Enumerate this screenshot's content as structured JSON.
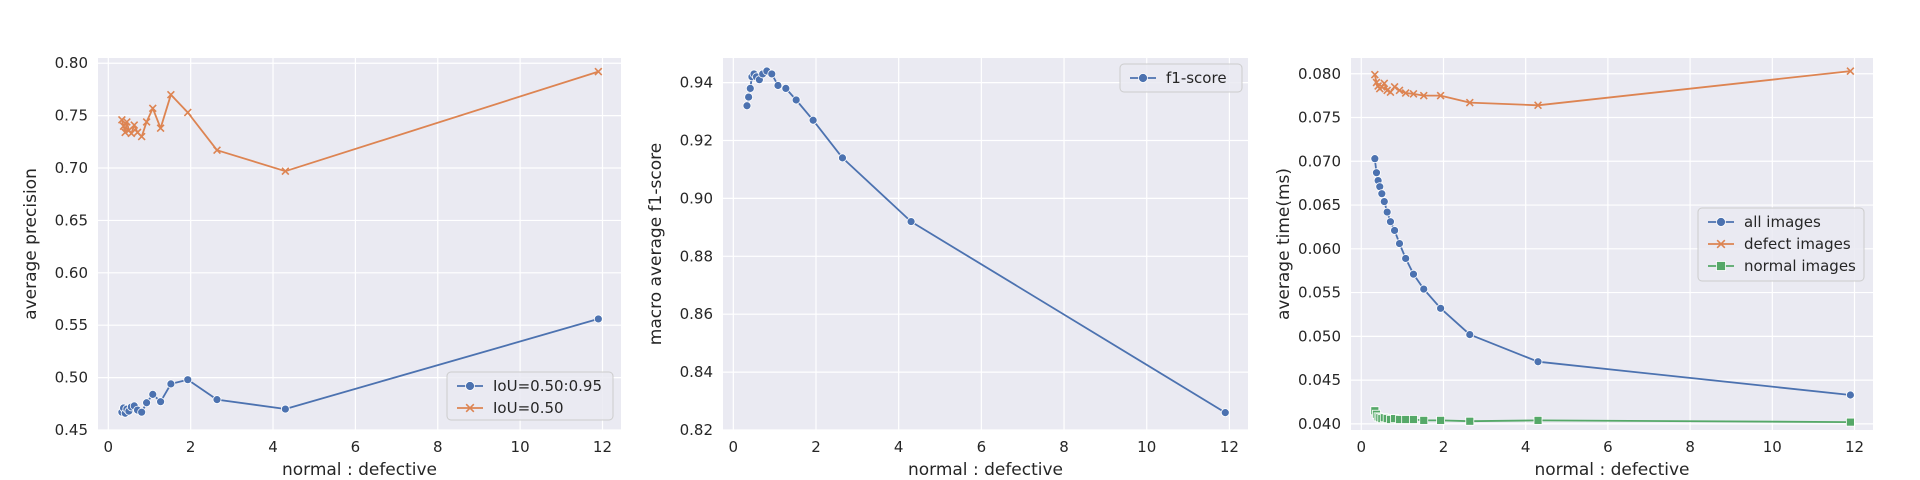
{
  "chart_data": [
    {
      "type": "line",
      "title": "",
      "xlabel": "normal : defective",
      "ylabel": "average precision",
      "xlim": [
        -0.25,
        12.45
      ],
      "ylim": [
        0.45,
        0.805
      ],
      "xticks": [
        0,
        2,
        4,
        6,
        8,
        10,
        12
      ],
      "yticks": [
        0.45,
        0.5,
        0.55,
        0.6,
        0.65,
        0.7,
        0.75,
        0.8
      ],
      "ytick_labels": [
        "0.45",
        "0.50",
        "0.55",
        "0.60",
        "0.65",
        "0.70",
        "0.75",
        "0.80"
      ],
      "grid": true,
      "legend_position": "lower-right",
      "series": [
        {
          "name": "IoU=0.50:0.95",
          "color": "#4c72b0",
          "marker": "circle",
          "x": [
            0.33,
            0.37,
            0.41,
            0.45,
            0.5,
            0.56,
            0.63,
            0.71,
            0.81,
            0.93,
            1.08,
            1.27,
            1.52,
            1.93,
            2.64,
            4.3,
            11.9
          ],
          "y": [
            0.467,
            0.471,
            0.466,
            0.47,
            0.468,
            0.472,
            0.473,
            0.469,
            0.467,
            0.476,
            0.484,
            0.477,
            0.494,
            0.498,
            0.479,
            0.47,
            0.556
          ]
        },
        {
          "name": "IoU=0.50",
          "color": "#dd8452",
          "marker": "x",
          "x": [
            0.33,
            0.37,
            0.41,
            0.45,
            0.5,
            0.56,
            0.63,
            0.71,
            0.81,
            0.93,
            1.08,
            1.27,
            1.52,
            1.93,
            2.64,
            4.3,
            11.9
          ],
          "y": [
            0.746,
            0.74,
            0.734,
            0.744,
            0.736,
            0.733,
            0.741,
            0.734,
            0.73,
            0.744,
            0.757,
            0.738,
            0.77,
            0.753,
            0.717,
            0.697,
            0.792
          ]
        }
      ]
    },
    {
      "type": "line",
      "title": "",
      "xlabel": "normal : defective",
      "ylabel": "macro average f1-score",
      "xlim": [
        -0.25,
        12.45
      ],
      "ylim": [
        0.82,
        0.9485
      ],
      "xticks": [
        0,
        2,
        4,
        6,
        8,
        10,
        12
      ],
      "yticks": [
        0.82,
        0.84,
        0.86,
        0.88,
        0.9,
        0.92,
        0.94
      ],
      "ytick_labels": [
        "0.82",
        "0.84",
        "0.86",
        "0.88",
        "0.90",
        "0.92",
        "0.94"
      ],
      "grid": true,
      "legend_position": "top-right",
      "series": [
        {
          "name": "f1-score",
          "color": "#4c72b0",
          "marker": "circle",
          "x": [
            0.33,
            0.37,
            0.41,
            0.45,
            0.5,
            0.56,
            0.63,
            0.71,
            0.81,
            0.93,
            1.08,
            1.27,
            1.52,
            1.93,
            2.64,
            4.3,
            11.9
          ],
          "y": [
            0.932,
            0.935,
            0.938,
            0.942,
            0.943,
            0.942,
            0.941,
            0.943,
            0.944,
            0.943,
            0.939,
            0.938,
            0.934,
            0.927,
            0.914,
            0.892,
            0.826
          ]
        }
      ]
    },
    {
      "type": "line",
      "title": "",
      "xlabel": "normal : defective",
      "ylabel": "average time(ms)",
      "xlim": [
        -0.25,
        12.45
      ],
      "ylim": [
        0.0393,
        0.0818
      ],
      "xticks": [
        0,
        2,
        4,
        6,
        8,
        10,
        12
      ],
      "yticks": [
        0.04,
        0.045,
        0.05,
        0.055,
        0.06,
        0.065,
        0.07,
        0.075,
        0.08
      ],
      "ytick_labels": [
        "0.040",
        "0.045",
        "0.050",
        "0.055",
        "0.060",
        "0.065",
        "0.070",
        "0.075",
        "0.080"
      ],
      "grid": true,
      "legend_position": "center-right",
      "series": [
        {
          "name": "all images",
          "color": "#4c72b0",
          "marker": "circle",
          "x": [
            0.33,
            0.37,
            0.41,
            0.45,
            0.5,
            0.56,
            0.63,
            0.71,
            0.81,
            0.93,
            1.08,
            1.27,
            1.52,
            1.93,
            2.64,
            4.3,
            11.9
          ],
          "y": [
            0.0703,
            0.0687,
            0.0678,
            0.0671,
            0.0663,
            0.0654,
            0.0642,
            0.0631,
            0.0621,
            0.0606,
            0.0589,
            0.0571,
            0.0554,
            0.0532,
            0.0502,
            0.0471,
            0.0433
          ]
        },
        {
          "name": "defect images",
          "color": "#dd8452",
          "marker": "x",
          "x": [
            0.33,
            0.37,
            0.41,
            0.45,
            0.5,
            0.56,
            0.63,
            0.71,
            0.81,
            0.93,
            1.08,
            1.27,
            1.52,
            1.93,
            2.64,
            4.3,
            11.9
          ],
          "y": [
            0.0799,
            0.079,
            0.0786,
            0.0783,
            0.0785,
            0.0789,
            0.0781,
            0.0779,
            0.0785,
            0.0781,
            0.0778,
            0.0777,
            0.0775,
            0.0775,
            0.0767,
            0.0764,
            0.0803
          ]
        },
        {
          "name": "normal images",
          "color": "#55a868",
          "marker": "square",
          "x": [
            0.33,
            0.37,
            0.41,
            0.45,
            0.5,
            0.56,
            0.63,
            0.71,
            0.81,
            0.93,
            1.08,
            1.27,
            1.52,
            1.93,
            2.64,
            4.3,
            11.9
          ],
          "y": [
            0.0415,
            0.0411,
            0.0408,
            0.0407,
            0.0406,
            0.0407,
            0.0406,
            0.0405,
            0.0406,
            0.0405,
            0.0405,
            0.0405,
            0.0404,
            0.0404,
            0.0403,
            0.0404,
            0.0402
          ]
        }
      ]
    }
  ]
}
